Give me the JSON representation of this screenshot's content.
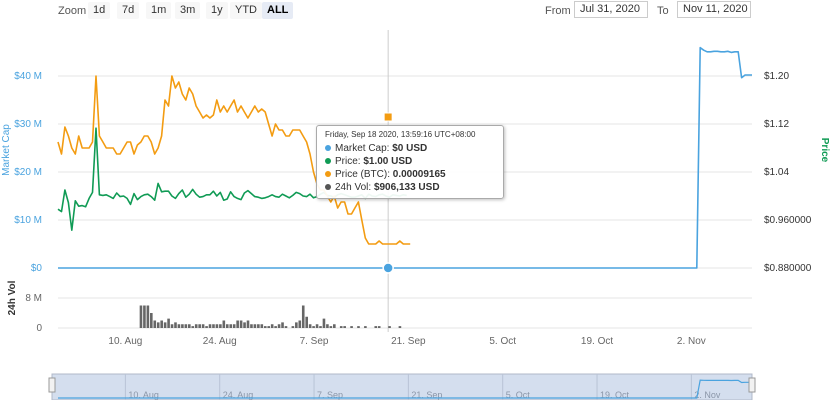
{
  "toolbar": {
    "zoom_label": "Zoom",
    "zoom_buttons": [
      "1d",
      "7d",
      "1m",
      "3m",
      "1y",
      "YTD",
      "ALL"
    ],
    "active_zoom": "ALL",
    "from_label": "From",
    "from_value": "Jul 31, 2020",
    "to_label": "To",
    "to_value": "Nov 11, 2020"
  },
  "tooltip": {
    "date": "Friday, Sep 18 2020, 13:59:16 UTC+08:00",
    "rows": [
      {
        "label": "Market Cap:",
        "value": "$0 USD",
        "color": "#4aa3df"
      },
      {
        "label": "Price:",
        "value": "$1.00 USD",
        "color": "#109b55"
      },
      {
        "label": "Price (BTC):",
        "value": "0.00009165",
        "color": "#f39c12"
      },
      {
        "label": "24h Vol:",
        "value": "$906,133 USD",
        "color": "#555555"
      }
    ]
  },
  "colors": {
    "market_cap": "#4aa3df",
    "price": "#109b55",
    "price_btc": "#f39c12",
    "volume": "#666666",
    "grid": "#e6e6e6",
    "navigator_fill": "#c9d6ea"
  },
  "chart_data": {
    "type": "line",
    "x_range": [
      "2020-07-31",
      "2020-11-11"
    ],
    "x_ticks": [
      "10. Aug",
      "24. Aug",
      "7. Sep",
      "21. Sep",
      "5. Oct",
      "19. Oct",
      "2. Nov"
    ],
    "left_axis": {
      "label": "Market Cap",
      "ticks": [
        "$0",
        "$10 M",
        "$20 M",
        "$30 M",
        "$40 M"
      ],
      "ylim": [
        0,
        40000000
      ]
    },
    "right_axis": {
      "label": "Price",
      "ticks": [
        "$0.880000",
        "$0.960000",
        "$1.04",
        "$1.12",
        "$1.20"
      ],
      "ylim": [
        0.88,
        1.2
      ]
    },
    "volume_axis": {
      "label": "24h Vol",
      "ticks": [
        "0",
        "8 M"
      ],
      "ylim": [
        0,
        8000000
      ]
    },
    "navigator_ticks": [
      "10. Aug",
      "24. Aug",
      "7. Sep",
      "21. Sep",
      "5. Oct",
      "19. Oct",
      "2. Nov"
    ],
    "series": [
      {
        "name": "Market Cap",
        "axis": "left",
        "values": [
          0,
          0,
          0,
          0,
          0,
          0,
          0,
          0,
          0,
          0,
          0,
          0,
          0,
          0,
          0,
          0,
          0,
          0,
          0,
          0,
          0,
          0,
          0,
          0,
          0,
          0,
          0,
          0,
          0,
          0,
          0,
          0,
          0,
          0,
          0,
          0,
          0,
          0,
          0,
          0,
          0,
          0,
          0,
          0,
          0,
          0,
          0,
          0,
          0,
          0,
          0,
          0,
          0,
          0,
          0,
          0,
          0,
          0,
          0,
          0,
          0,
          0,
          0,
          0,
          0,
          0,
          0,
          0,
          0,
          0,
          0,
          0,
          0,
          0,
          0,
          0,
          0,
          0,
          0,
          0,
          0,
          0,
          0,
          0,
          0,
          0,
          0,
          0,
          0,
          0,
          0,
          0,
          0,
          0,
          0,
          0,
          0,
          0,
          0,
          0,
          0,
          0,
          0,
          0,
          0,
          0,
          0,
          0,
          0,
          0,
          0,
          0,
          0,
          0,
          0,
          0,
          0,
          0,
          0,
          0,
          0,
          0,
          0,
          0,
          0,
          0,
          0,
          0,
          0,
          0,
          0,
          0,
          0,
          0,
          0,
          0,
          0,
          0,
          0,
          0,
          0,
          0,
          0,
          0,
          0,
          0,
          0,
          0,
          0,
          0,
          0,
          0,
          0,
          0,
          0,
          0,
          0,
          0,
          0,
          0,
          0,
          0,
          0,
          0,
          0,
          0,
          0,
          0,
          0,
          0,
          0,
          0,
          0,
          0,
          0,
          0,
          0,
          0,
          0,
          0,
          0,
          0,
          0,
          0,
          0,
          0,
          41800000,
          41300000,
          41000000,
          41000000,
          41100000,
          41100000,
          41000000,
          41000000,
          41100000,
          40900000,
          41000000,
          41000000,
          36100000,
          36600000,
          36600000,
          36600000
        ]
      },
      {
        "name": "Price",
        "axis": "right",
        "values": [
          0.978,
          0.974,
          1.01,
          0.989,
          0.943,
          0.992,
          0.983,
          0.984,
          0.982,
          0.996,
          1.006,
          1.113,
          1.002,
          1.001,
          1.002,
          0.999,
          0.996,
          1.005,
          0.999,
          1.0,
          0.996,
          0.986,
          1.004,
          0.994,
          0.999,
          1.002,
          1.003,
          0.999,
          0.993,
          1.021,
          1.007,
          1.008,
          1.008,
          1.0,
          0.996,
          1.004,
          1.01,
          0.998,
          1.003,
          1.011,
          1.003,
          0.998,
          0.999,
          1.002,
          1.002,
          1.008,
          1.0,
          1.006,
          0.993,
          0.995,
          1.007,
          0.999,
          0.996,
          0.994,
          1.005,
          1.009,
          1.004,
          0.999,
          0.998,
          0.996,
          0.997,
          0.999,
          1.002,
          0.999,
          0.998,
          1.003,
          1.0,
          0.997,
          1.001,
          1.006,
          1.004,
          1.0,
          0.999,
          1.003,
          0.997,
          0.999,
          1.003,
          1.006,
          1.001,
          1.0,
          0.998,
          1.002,
          1.004,
          1.002,
          1.0,
          0.998,
          0.998,
          1.0,
          1.002,
          0.996,
          1.003,
          1.0,
          0.999,
          1.002,
          1.003,
          1.0,
          0.998,
          1.002,
          1.001,
          1.0,
          1.002,
          1.001
        ]
      },
      {
        "name": "Price (BTC)",
        "axis": "right",
        "values": [
          1.09,
          1.07,
          1.115,
          1.1,
          1.08,
          1.07,
          1.1,
          1.08,
          1.08,
          1.08,
          1.09,
          1.2,
          1.1,
          1.09,
          1.08,
          1.08,
          1.08,
          1.07,
          1.07,
          1.08,
          1.09,
          1.09,
          1.07,
          1.085,
          1.09,
          1.1,
          1.1,
          1.09,
          1.07,
          1.08,
          1.1,
          1.16,
          1.15,
          1.2,
          1.18,
          1.19,
          1.17,
          1.16,
          1.18,
          1.17,
          1.15,
          1.14,
          1.13,
          1.135,
          1.13,
          1.135,
          1.16,
          1.14,
          1.15,
          1.14,
          1.15,
          1.16,
          1.14,
          1.15,
          1.14,
          1.13,
          1.14,
          1.15,
          1.14,
          1.145,
          1.14,
          1.12,
          1.1,
          1.12,
          1.11,
          1.11,
          1.1,
          1.1,
          1.11,
          1.11,
          1.11,
          1.1,
          1.09,
          1.07,
          1.04,
          1.02,
          1.01,
          1.01,
          1.0,
          0.99,
          1.0,
          0.98,
          0.99,
          0.99,
          0.97,
          0.97,
          0.98,
          0.99,
          0.96,
          0.93,
          0.92,
          0.92,
          0.92,
          0.925,
          0.92,
          0.92,
          0.92,
          0.92,
          0.92,
          0.925,
          0.92,
          0.92,
          0.92
        ]
      },
      {
        "name": "24h Vol",
        "axis": "volume",
        "values": [
          0,
          0,
          0,
          0,
          0,
          0,
          0,
          0,
          0,
          0,
          0,
          0,
          0,
          0,
          0,
          0,
          0,
          0,
          0,
          0,
          0,
          0,
          0,
          0,
          6000000,
          6000000,
          6000000,
          4000000,
          2000000,
          1500000,
          2000000,
          1500000,
          2500000,
          1000000,
          1500000,
          1000000,
          1000000,
          1000000,
          1000000,
          500000,
          1000000,
          1000000,
          1000000,
          500000,
          1000000,
          1000000,
          1000000,
          1000000,
          2000000,
          1000000,
          1000000,
          1000000,
          2000000,
          2000000,
          1500000,
          2000000,
          1000000,
          1000000,
          1000000,
          1000000,
          500000,
          500000,
          1000000,
          500000,
          1000000,
          1500000,
          500000,
          0,
          500000,
          1500000,
          2000000,
          6000000,
          3000000,
          1000000,
          500000,
          1000000,
          500000,
          2500000,
          1000000,
          500000,
          1000000,
          0,
          500000,
          500000,
          0,
          500000,
          0,
          500000,
          0,
          500000,
          0,
          0,
          500000,
          500000,
          0,
          0,
          500000,
          0,
          0,
          500000,
          0,
          0
        ]
      }
    ]
  }
}
